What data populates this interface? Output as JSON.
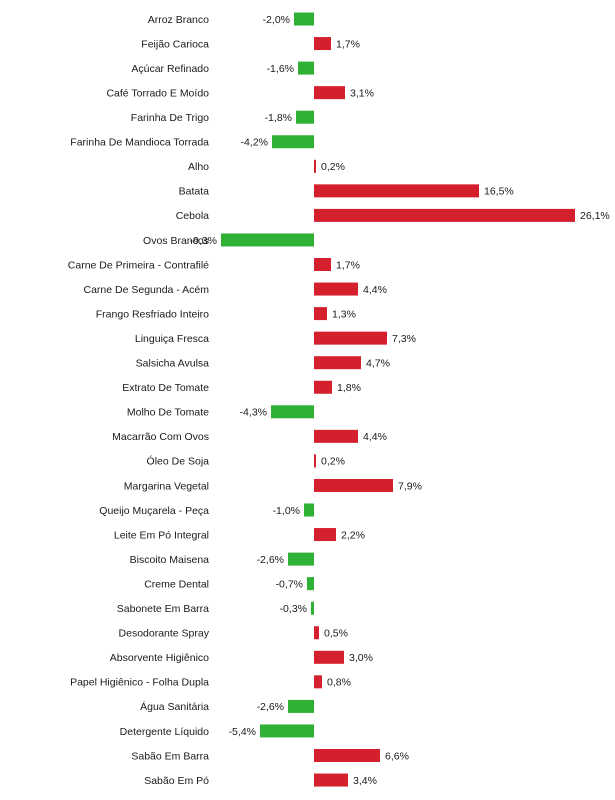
{
  "chart_data": {
    "type": "bar",
    "orientation": "horizontal",
    "categories": [
      "Arroz Branco",
      "Feijão Carioca",
      "Açúcar Refinado",
      "Café Torrado E Moído",
      "Farinha De Trigo",
      "Farinha De Mandioca Torrada",
      "Alho",
      "Batata",
      "Cebola",
      "Ovos Brancos",
      "Carne De Primeira - Contrafilé",
      "Carne De Segunda - Acém",
      "Frango Resfriado Inteiro",
      "Linguiça Fresca",
      "Salsicha Avulsa",
      "Extrato De Tomate",
      "Molho De Tomate",
      "Macarrão Com Ovos",
      "Óleo De Soja",
      "Margarina Vegetal",
      "Queijo Muçarela - Peça",
      "Leite Em Pó Integral",
      "Biscoito Maisena",
      "Creme Dental",
      "Sabonete Em Barra",
      "Desodorante Spray",
      "Absorvente Higiênico",
      "Papel Higiênico - Folha Dupla",
      "Água Sanitária",
      "Detergente Líquido",
      "Sabão Em Barra",
      "Sabão Em Pó"
    ],
    "values": [
      -2.0,
      1.7,
      -1.6,
      3.1,
      -1.8,
      -4.2,
      0.2,
      16.5,
      26.1,
      -9.3,
      1.7,
      4.4,
      1.3,
      7.3,
      4.7,
      1.8,
      -4.3,
      4.4,
      0.2,
      7.9,
      -1.0,
      2.2,
      -2.6,
      -0.7,
      -0.3,
      0.5,
      3.0,
      0.8,
      -2.6,
      -5.4,
      6.6,
      3.4
    ],
    "value_labels": [
      "-2,0%",
      "1,7%",
      "-1,6%",
      "3,1%",
      "-1,8%",
      "-4,2%",
      "0,2%",
      "16,5%",
      "26,1%",
      "-9,3%",
      "1,7%",
      "4,4%",
      "1,3%",
      "7,3%",
      "4,7%",
      "1,8%",
      "-4,3%",
      "4,4%",
      "0,2%",
      "7,9%",
      "-1,0%",
      "2,2%",
      "-2,6%",
      "-0,7%",
      "-0,3%",
      "0,5%",
      "3,0%",
      "0,8%",
      "-2,6%",
      "-5,4%",
      "6,6%",
      "3,4%"
    ],
    "unit": "%",
    "title": "",
    "xlabel": "",
    "ylabel": "",
    "xlim": [
      -9.3,
      26.1
    ],
    "grid": false,
    "legend": "none",
    "colors": {
      "positive": "#d4202c",
      "negative": "#2eb135"
    }
  }
}
